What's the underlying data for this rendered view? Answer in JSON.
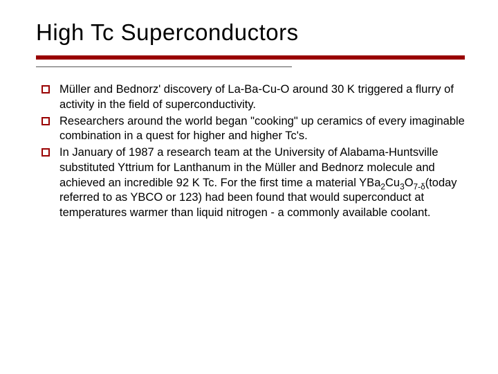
{
  "slide": {
    "title": "High Tc Superconductors",
    "title_fontsize": 33,
    "title_color": "#000000",
    "divider_color": "#990000",
    "divider_thickness": 6,
    "divider_thin_width": 370,
    "bullet_marker_border": "#990000",
    "body_fontsize": 16.5,
    "body_color": "#000000",
    "body_line_height": 1.32,
    "background_color": "#ffffff",
    "bullets": [
      "Müller and Bednorz' discovery of La-Ba-Cu-O around 30 K triggered a flurry of activity in the field of superconductivity.",
      "Researchers around the world began \"cooking\" up ceramics of every imaginable combination in a quest for higher and higher Tc's.",
      "In January of 1987 a research team at the University of Alabama-Huntsville substituted Yttrium for Lanthanum in the Müller and Bednorz molecule and achieved an incredible 92 K Tc. For the first time a material YBa₂Cu₃O₇₋δ(today referred to as YBCO or 123) had been found that would superconduct at temperatures warmer than liquid nitrogen - a commonly available coolant."
    ],
    "bullet3_formula": {
      "base": "YBa",
      "sub1": "2",
      "mid1": "Cu",
      "sub2": "3",
      "mid2": "O",
      "sub3": "7-δ"
    }
  }
}
